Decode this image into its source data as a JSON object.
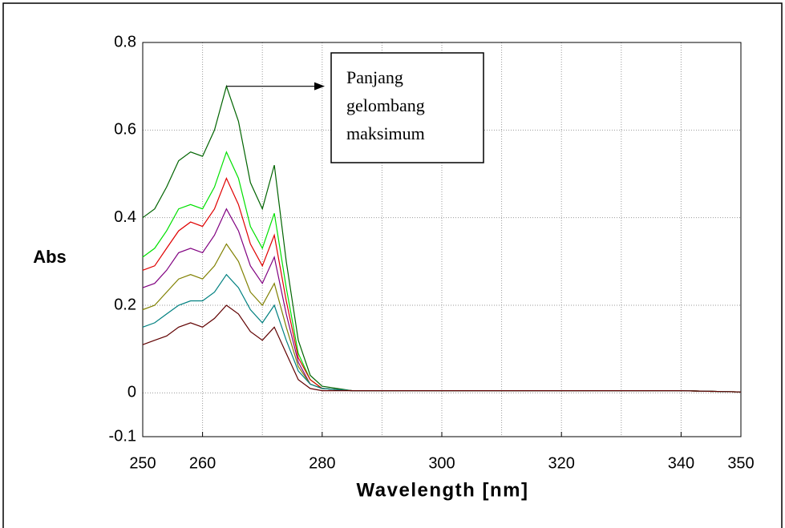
{
  "chart_data": {
    "type": "line",
    "ylabel": "Abs",
    "xlabel": "Wavelength [nm]",
    "annotation": {
      "lines": [
        "Panjang",
        "gelombang",
        "maksimum"
      ],
      "x": 264,
      "y": 0.7
    },
    "xlim": [
      250,
      350
    ],
    "xticks": [
      250,
      260,
      280,
      300,
      320,
      340,
      350
    ],
    "xgrid": [
      260,
      270,
      280,
      290,
      300,
      310,
      320,
      330,
      340
    ],
    "ylim": [
      -0.1,
      0.8
    ],
    "yticks": [
      -0.1,
      0,
      0.2,
      0.4,
      0.6,
      0.8
    ],
    "grid": true,
    "x": [
      250,
      252,
      254,
      256,
      258,
      260,
      262,
      264,
      266,
      268,
      270,
      272,
      274,
      276,
      278,
      280,
      285,
      290,
      300,
      310,
      320,
      330,
      340,
      350
    ],
    "series": [
      {
        "color": "#006400",
        "values": [
          0.4,
          0.42,
          0.47,
          0.53,
          0.55,
          0.54,
          0.6,
          0.7,
          0.62,
          0.48,
          0.42,
          0.52,
          0.3,
          0.12,
          0.04,
          0.015,
          0.005,
          0.005,
          0.005,
          0.005,
          0.005,
          0.005,
          0.005,
          0.002
        ]
      },
      {
        "color": "#00e000",
        "values": [
          0.31,
          0.33,
          0.37,
          0.42,
          0.43,
          0.42,
          0.47,
          0.55,
          0.49,
          0.38,
          0.33,
          0.41,
          0.24,
          0.09,
          0.03,
          0.01,
          0.005,
          0.005,
          0.005,
          0.005,
          0.005,
          0.005,
          0.005,
          0.002
        ]
      },
      {
        "color": "#e00000",
        "values": [
          0.28,
          0.29,
          0.33,
          0.37,
          0.39,
          0.38,
          0.42,
          0.49,
          0.43,
          0.34,
          0.29,
          0.36,
          0.21,
          0.08,
          0.03,
          0.01,
          0.005,
          0.005,
          0.005,
          0.005,
          0.005,
          0.005,
          0.005,
          0.002
        ]
      },
      {
        "color": "#800080",
        "values": [
          0.24,
          0.25,
          0.28,
          0.32,
          0.33,
          0.32,
          0.36,
          0.42,
          0.37,
          0.29,
          0.25,
          0.31,
          0.18,
          0.07,
          0.02,
          0.01,
          0.005,
          0.005,
          0.005,
          0.005,
          0.005,
          0.005,
          0.005,
          0.002
        ]
      },
      {
        "color": "#808000",
        "values": [
          0.19,
          0.2,
          0.23,
          0.26,
          0.27,
          0.26,
          0.29,
          0.34,
          0.3,
          0.23,
          0.2,
          0.25,
          0.15,
          0.06,
          0.02,
          0.01,
          0.005,
          0.005,
          0.005,
          0.005,
          0.005,
          0.005,
          0.005,
          0.002
        ]
      },
      {
        "color": "#008080",
        "values": [
          0.15,
          0.16,
          0.18,
          0.2,
          0.21,
          0.21,
          0.23,
          0.27,
          0.24,
          0.19,
          0.16,
          0.2,
          0.12,
          0.05,
          0.02,
          0.01,
          0.005,
          0.005,
          0.005,
          0.005,
          0.005,
          0.005,
          0.005,
          0.002
        ]
      },
      {
        "color": "#600000",
        "values": [
          0.11,
          0.12,
          0.13,
          0.15,
          0.16,
          0.15,
          0.17,
          0.2,
          0.18,
          0.14,
          0.12,
          0.15,
          0.09,
          0.03,
          0.01,
          0.005,
          0.005,
          0.005,
          0.005,
          0.005,
          0.005,
          0.005,
          0.005,
          0.002
        ]
      }
    ]
  }
}
